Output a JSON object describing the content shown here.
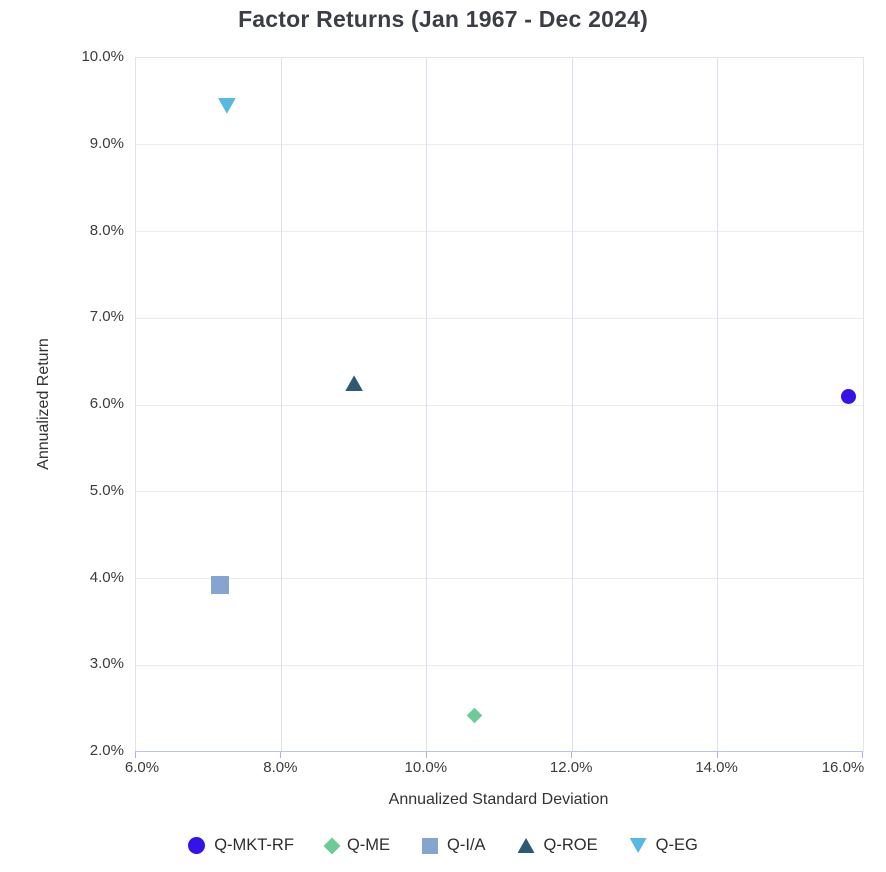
{
  "page_title": "Factor Returns (Jan 1967 - Dec 2024)",
  "chart_data": {
    "type": "scatter",
    "title": "Factor Returns (Jan 1967 - Dec 2024)",
    "xlabel": "Annualized Standard Deviation",
    "ylabel": "Annualized Return",
    "xlim": [
      6.0,
      16.0
    ],
    "ylim": [
      2.0,
      10.0
    ],
    "x_tick_values": [
      6.0,
      8.0,
      10.0,
      12.0,
      14.0,
      16.0
    ],
    "x_tick_labels": [
      "6.0%",
      "8.0%",
      "10.0%",
      "12.0%",
      "14.0%",
      "16.0%"
    ],
    "y_tick_values": [
      2.0,
      3.0,
      4.0,
      5.0,
      6.0,
      7.0,
      8.0,
      9.0,
      10.0
    ],
    "y_tick_labels": [
      "2.0%",
      "3.0%",
      "4.0%",
      "5.0%",
      "6.0%",
      "7.0%",
      "8.0%",
      "9.0%",
      "10.0%"
    ],
    "grid": true,
    "legend_position": "bottom",
    "series": [
      {
        "name": "Q-MKT-RF",
        "marker": "circle",
        "color": "#3313ea",
        "x": 15.8,
        "y": 6.1
      },
      {
        "name": "Q-ME",
        "marker": "diamond",
        "color": "#6ecb98",
        "x": 10.65,
        "y": 2.42
      },
      {
        "name": "Q-I/A",
        "marker": "square",
        "color": "#87a3cf",
        "x": 7.15,
        "y": 3.93
      },
      {
        "name": "Q-ROE",
        "marker": "triangle-up",
        "color": "#2f5873",
        "x": 9.0,
        "y": 6.25
      },
      {
        "name": "Q-EG",
        "marker": "triangle-down",
        "color": "#57b8e2",
        "x": 7.25,
        "y": 9.45
      }
    ]
  },
  "colors": {
    "axis_line": "#b9c2e8",
    "tick_mark": "#aab4e0",
    "h_gridline": "#ebebeb",
    "v_gridline": "#dcdff0",
    "plot_border": "#e4e4e4",
    "title_text": "#3b3f45",
    "tick_text": "#3c3c3c"
  }
}
